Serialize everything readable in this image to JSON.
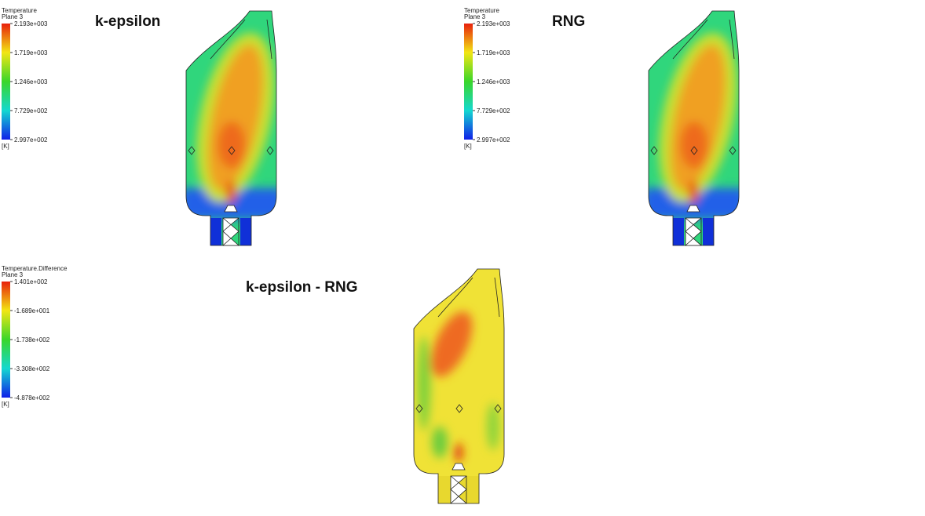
{
  "panels": [
    {
      "title": "k-epsilon",
      "legend": {
        "title": "Temperature",
        "subtitle": "Plane 3",
        "labels": [
          "2.193e+003",
          "1.719e+003",
          "1.246e+003",
          "7.729e+002",
          "2.997e+002"
        ],
        "unit": "[K]"
      }
    },
    {
      "title": "RNG",
      "legend": {
        "title": "Temperature",
        "subtitle": "Plane 3",
        "labels": [
          "2.193e+003",
          "1.719e+003",
          "1.246e+003",
          "7.729e+002",
          "2.997e+002"
        ],
        "unit": "[K]"
      }
    },
    {
      "title": "k-epsilon - RNG",
      "legend": {
        "title": "Temperature.Difference",
        "subtitle": "Plane 3",
        "labels": [
          "1.401e+002",
          "-1.689e+001",
          "-1.738e+002",
          "-3.308e+002",
          "-4.878e+002"
        ],
        "unit": "[K]"
      }
    }
  ]
}
